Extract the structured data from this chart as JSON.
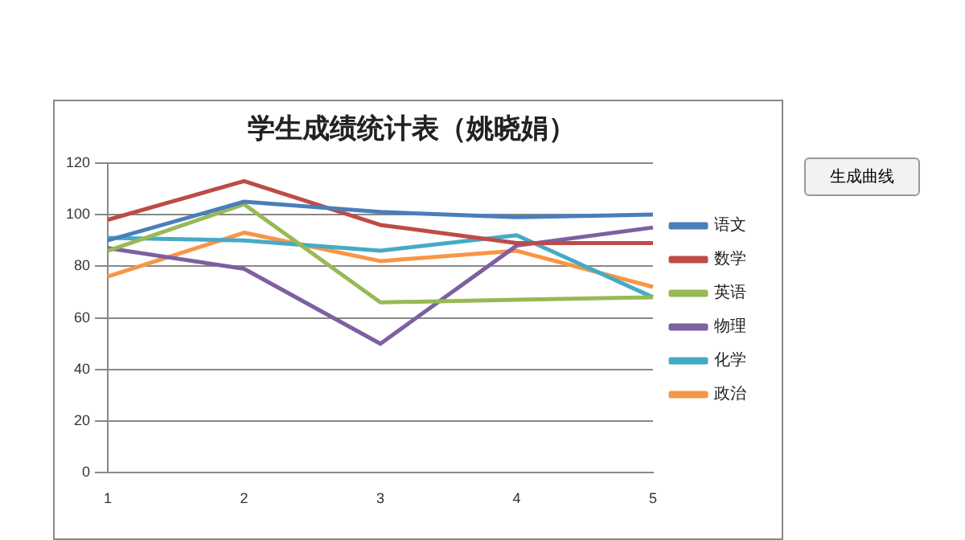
{
  "chart_data": {
    "type": "line",
    "title": "学生成绩统计表（姚晓娟）",
    "categories": [
      "1",
      "2",
      "3",
      "4",
      "5"
    ],
    "series": [
      {
        "name": "语文",
        "color": "#4a7ebb",
        "values": [
          90,
          105,
          101,
          99,
          100
        ]
      },
      {
        "name": "数学",
        "color": "#be4b48",
        "values": [
          98,
          113,
          96,
          89,
          89
        ]
      },
      {
        "name": "英语",
        "color": "#98b954",
        "values": [
          86,
          104,
          66,
          67,
          68
        ]
      },
      {
        "name": "物理",
        "color": "#7d60a0",
        "values": [
          87,
          79,
          50,
          88,
          95
        ]
      },
      {
        "name": "化学",
        "color": "#46aac5",
        "values": [
          91,
          90,
          86,
          92,
          68
        ]
      },
      {
        "name": "政治",
        "color": "#f79646",
        "values": [
          76,
          93,
          82,
          86,
          72
        ]
      }
    ],
    "ylim": [
      0,
      120
    ],
    "yticks": [
      0,
      20,
      40,
      60,
      80,
      100,
      120
    ],
    "grid": "y",
    "legend": "right",
    "marker": "none",
    "line_style": "solid",
    "annotations": [
      "生成曲线"
    ]
  }
}
